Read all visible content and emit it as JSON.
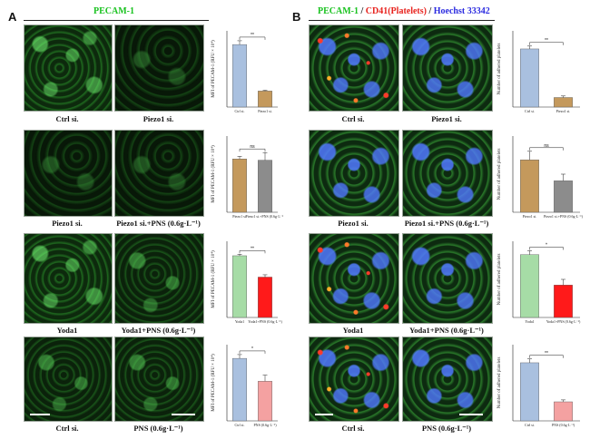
{
  "panel_a": {
    "letter": "A",
    "title": "PECAM-1",
    "title_color": "#19c21f",
    "rows": [
      {
        "left": "Ctrl si.",
        "right": "Piezo1 si."
      },
      {
        "left": "Piezo1 si.",
        "right": "Piezo1 si.+PNS (0.6g·L⁻¹)"
      },
      {
        "left": "Yoda1",
        "right": "Yoda1+PNS (0.6g·L⁻¹)"
      },
      {
        "left": "Ctrl si.",
        "right": "PNS (0.6g·L⁻¹)"
      }
    ]
  },
  "panel_b": {
    "letter": "B",
    "title_parts": [
      {
        "text": "PECAM-1",
        "color": "#19c21f"
      },
      {
        "text": " / ",
        "color": "#111111"
      },
      {
        "text": "CD41(Platelets)",
        "color": "#e8231e"
      },
      {
        "text": " / ",
        "color": "#111111"
      },
      {
        "text": "Hoechst 33342",
        "color": "#2b2be0"
      }
    ],
    "rows": [
      {
        "left": "Ctrl si.",
        "right": "Piezo1 si."
      },
      {
        "left": "Piezo1 si.",
        "right": "Piezo1 si.+PNS (0.6g·L⁻¹)"
      },
      {
        "left": "Yoda1",
        "right": "Yoda1+PNS (0.6g·L⁻¹)"
      },
      {
        "left": "Ctrl si.",
        "right": "PNS (0.6g·L⁻¹)"
      }
    ]
  },
  "chart_data": [
    {
      "type": "bar",
      "panel": "A",
      "ylabel": "MFI of PECAM-1 (RFU × 10⁴)",
      "categories": [
        "Ctrl si.",
        "Piezo1 si."
      ],
      "values": [
        8.2,
        2.1
      ],
      "errors": [
        0.5,
        0.1
      ],
      "colors": [
        "#a9c0df",
        "#c4995c"
      ],
      "ylim": [
        0,
        10
      ],
      "significance": "**"
    },
    {
      "type": "bar",
      "panel": "A",
      "ylabel": "MFI of PECAM-1 (RFU × 10⁴)",
      "categories": [
        "Piezo1 si.",
        "Piezo1 si.+PNS (0.6g·L⁻¹)"
      ],
      "values": [
        2.1,
        2.05
      ],
      "errors": [
        0.1,
        0.3
      ],
      "colors": [
        "#c4995c",
        "#8c8c8c"
      ],
      "ylim": [
        0,
        3
      ],
      "significance": "ns"
    },
    {
      "type": "bar",
      "panel": "A",
      "ylabel": "MFI of PECAM-1 (RFU × 10⁴)",
      "categories": [
        "Yoda1",
        "Yoda1+PNS (0.6g·L⁻¹)"
      ],
      "values": [
        8.1,
        5.3
      ],
      "errors": [
        0.2,
        0.3
      ],
      "colors": [
        "#a6dca6",
        "#ff1a1a"
      ],
      "ylim": [
        0,
        10
      ],
      "significance": "**"
    },
    {
      "type": "bar",
      "panel": "A",
      "ylabel": "MFI of PECAM-1 (RFU × 10⁴)",
      "categories": [
        "Ctrl si.",
        "PNS (0.6g·L⁻¹)"
      ],
      "values": [
        8.2,
        5.2
      ],
      "errors": [
        0.5,
        0.8
      ],
      "colors": [
        "#a9c0df",
        "#f4a1a1"
      ],
      "ylim": [
        0,
        10
      ],
      "significance": "*"
    },
    {
      "type": "bar",
      "panel": "B",
      "ylabel": "Number of adhered platelets",
      "categories": [
        "Ctrl si.",
        "Piezo1 si."
      ],
      "values": [
        305,
        50
      ],
      "errors": [
        15,
        8
      ],
      "colors": [
        "#a9c0df",
        "#c4995c"
      ],
      "ylim": [
        0,
        400
      ],
      "significance": "**"
    },
    {
      "type": "bar",
      "panel": "B",
      "ylabel": "Number of adhered platelets",
      "categories": [
        "Piezo1 si.",
        "Piezo1 si.+PNS (0.6g·L⁻¹)"
      ],
      "values": [
        55,
        33
      ],
      "errors": [
        9,
        7
      ],
      "colors": [
        "#c4995c",
        "#8c8c8c"
      ],
      "ylim": [
        0,
        80
      ],
      "significance": "ns"
    },
    {
      "type": "bar",
      "panel": "B",
      "ylabel": "Number of adhered platelets",
      "categories": [
        "Yoda1",
        "Yoda1+PNS (0.6g·L⁻¹)"
      ],
      "values": [
        165,
        85
      ],
      "errors": [
        10,
        15
      ],
      "colors": [
        "#a6dca6",
        "#ff1a1a"
      ],
      "ylim": [
        0,
        200
      ],
      "significance": "*"
    },
    {
      "type": "bar",
      "panel": "B",
      "ylabel": "Number of adhered platelets",
      "categories": [
        "Ctrl si.",
        "PNS (0.6g·L⁻¹)"
      ],
      "values": [
        305,
        100
      ],
      "errors": [
        20,
        10
      ],
      "colors": [
        "#a9c0df",
        "#f4a1a1"
      ],
      "ylim": [
        0,
        400
      ],
      "significance": "**"
    }
  ]
}
